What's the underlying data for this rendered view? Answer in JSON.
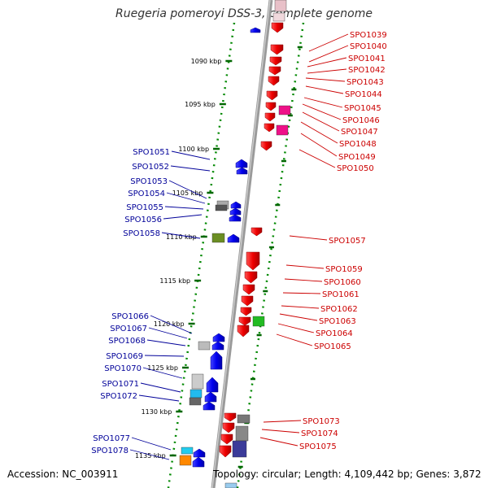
{
  "title": "Ruegeria pomeroyi DSS-3, complete genome",
  "footer": {
    "accession": "Accession: NC_003911",
    "topology_label": "Topology: circular; ",
    "length_label": "Length: 4,109,442 bp; ",
    "genes_label": "Genes: 3,872"
  },
  "ticks": [
    {
      "label": "1090 kbp"
    },
    {
      "label": "1095 kbp"
    },
    {
      "label": "1100 kbp"
    },
    {
      "label": "1105 kbp"
    },
    {
      "label": "1110 kbp"
    },
    {
      "label": "1115 kbp"
    },
    {
      "label": "1120 kbp"
    },
    {
      "label": "1125 kbp"
    },
    {
      "label": "1130 kbp"
    },
    {
      "label": "1135 kbp"
    }
  ],
  "genes_right": [
    "SPO1039",
    "SPO1040",
    "SPO1041",
    "SPO1042",
    "SPO1043",
    "SPO1044",
    "SPO1045",
    "SPO1046",
    "SPO1047",
    "SPO1048",
    "SPO1049",
    "SPO1050",
    "SPO1057",
    "SPO1059",
    "SPO1060",
    "SPO1061",
    "SPO1062",
    "SPO1063",
    "SPO1064",
    "SPO1065",
    "SPO1073",
    "SPO1074",
    "SPO1075"
  ],
  "genes_left": [
    "SPO1051",
    "SPO1052",
    "SPO1053",
    "SPO1054",
    "SPO1055",
    "SPO1056",
    "SPO1058",
    "SPO1066",
    "SPO1067",
    "SPO1068",
    "SPO1069",
    "SPO1070",
    "SPO1071",
    "SPO1072",
    "SPO1077",
    "SPO1078"
  ],
  "colors": {
    "forward": "#ff0000",
    "reverse": "#0000ff",
    "backbone": "#999999",
    "ruler_dots": "#008800",
    "tick": "#006600",
    "label_right": "#cc0000",
    "label_left": "#000099"
  }
}
